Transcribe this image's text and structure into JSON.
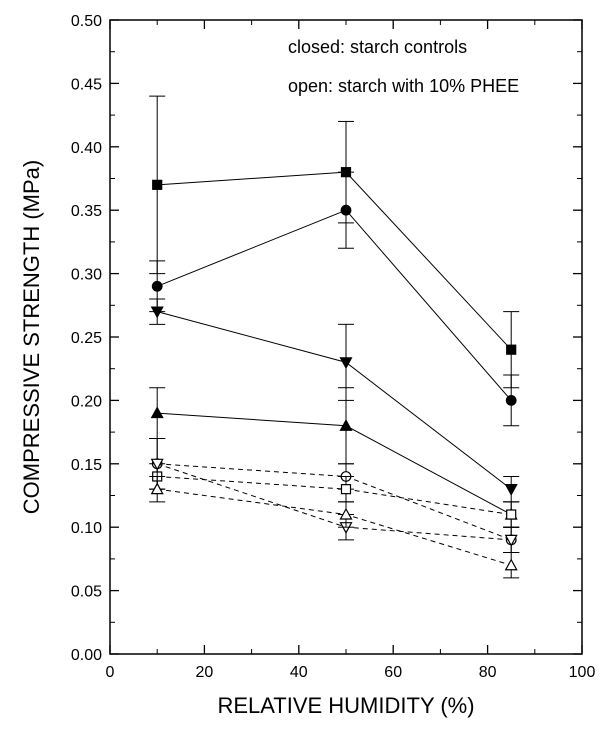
{
  "chart_data": {
    "type": "scatter",
    "xlabel": "RELATIVE HUMIDITY (%)",
    "ylabel": "COMPRESSIVE STRENGTH (MPa)",
    "xlim": [
      0,
      100
    ],
    "ylim": [
      0,
      0.5
    ],
    "x_ticks": [
      "0",
      "20",
      "40",
      "60",
      "80",
      "100"
    ],
    "y_ticks": [
      "0.00",
      "0.05",
      "0.10",
      "0.15",
      "0.20",
      "0.25",
      "0.30",
      "0.35",
      "0.40",
      "0.45",
      "0.50"
    ],
    "annotations": [
      "closed: starch controls",
      "open: starch with 10% PHEE"
    ],
    "grid": false,
    "series": [
      {
        "marker": "square",
        "filled": true,
        "line": "solid",
        "x": [
          10,
          50,
          85
        ],
        "y": [
          0.37,
          0.38,
          0.24
        ],
        "err": [
          0.07,
          0.04,
          0.03
        ]
      },
      {
        "marker": "circle",
        "filled": true,
        "line": "solid",
        "x": [
          10,
          50,
          85
        ],
        "y": [
          0.29,
          0.35,
          0.2
        ],
        "err": [
          0.02,
          0.03,
          0.02
        ]
      },
      {
        "marker": "triangle-down",
        "filled": true,
        "line": "solid",
        "x": [
          10,
          50,
          85
        ],
        "y": [
          0.27,
          0.23,
          0.13
        ],
        "err": [
          0.01,
          0.03,
          0.01
        ]
      },
      {
        "marker": "triangle-up",
        "filled": true,
        "line": "solid",
        "x": [
          10,
          50,
          85
        ],
        "y": [
          0.19,
          0.18,
          0.11
        ],
        "err": [
          0.02,
          0.03,
          0.01
        ]
      },
      {
        "marker": "circle",
        "filled": false,
        "line": "dashed",
        "x": [
          10,
          50,
          85
        ],
        "y": [
          0.15,
          0.14,
          0.09
        ],
        "err": [
          0.02,
          0.01,
          0.01
        ]
      },
      {
        "marker": "square",
        "filled": false,
        "line": "dashed",
        "x": [
          10,
          50,
          85
        ],
        "y": [
          0.14,
          0.13,
          0.11
        ],
        "err": [
          0.01,
          0.01,
          0.01
        ]
      },
      {
        "marker": "triangle-down",
        "filled": false,
        "line": "dashed",
        "x": [
          10,
          50,
          85
        ],
        "y": [
          0.15,
          0.1,
          0.09
        ],
        "err": [
          0.02,
          0.01,
          0.01
        ]
      },
      {
        "marker": "triangle-up",
        "filled": false,
        "line": "dashed",
        "x": [
          10,
          50,
          85
        ],
        "y": [
          0.13,
          0.11,
          0.07
        ],
        "err": [
          0.01,
          0.01,
          0.01
        ]
      }
    ]
  }
}
